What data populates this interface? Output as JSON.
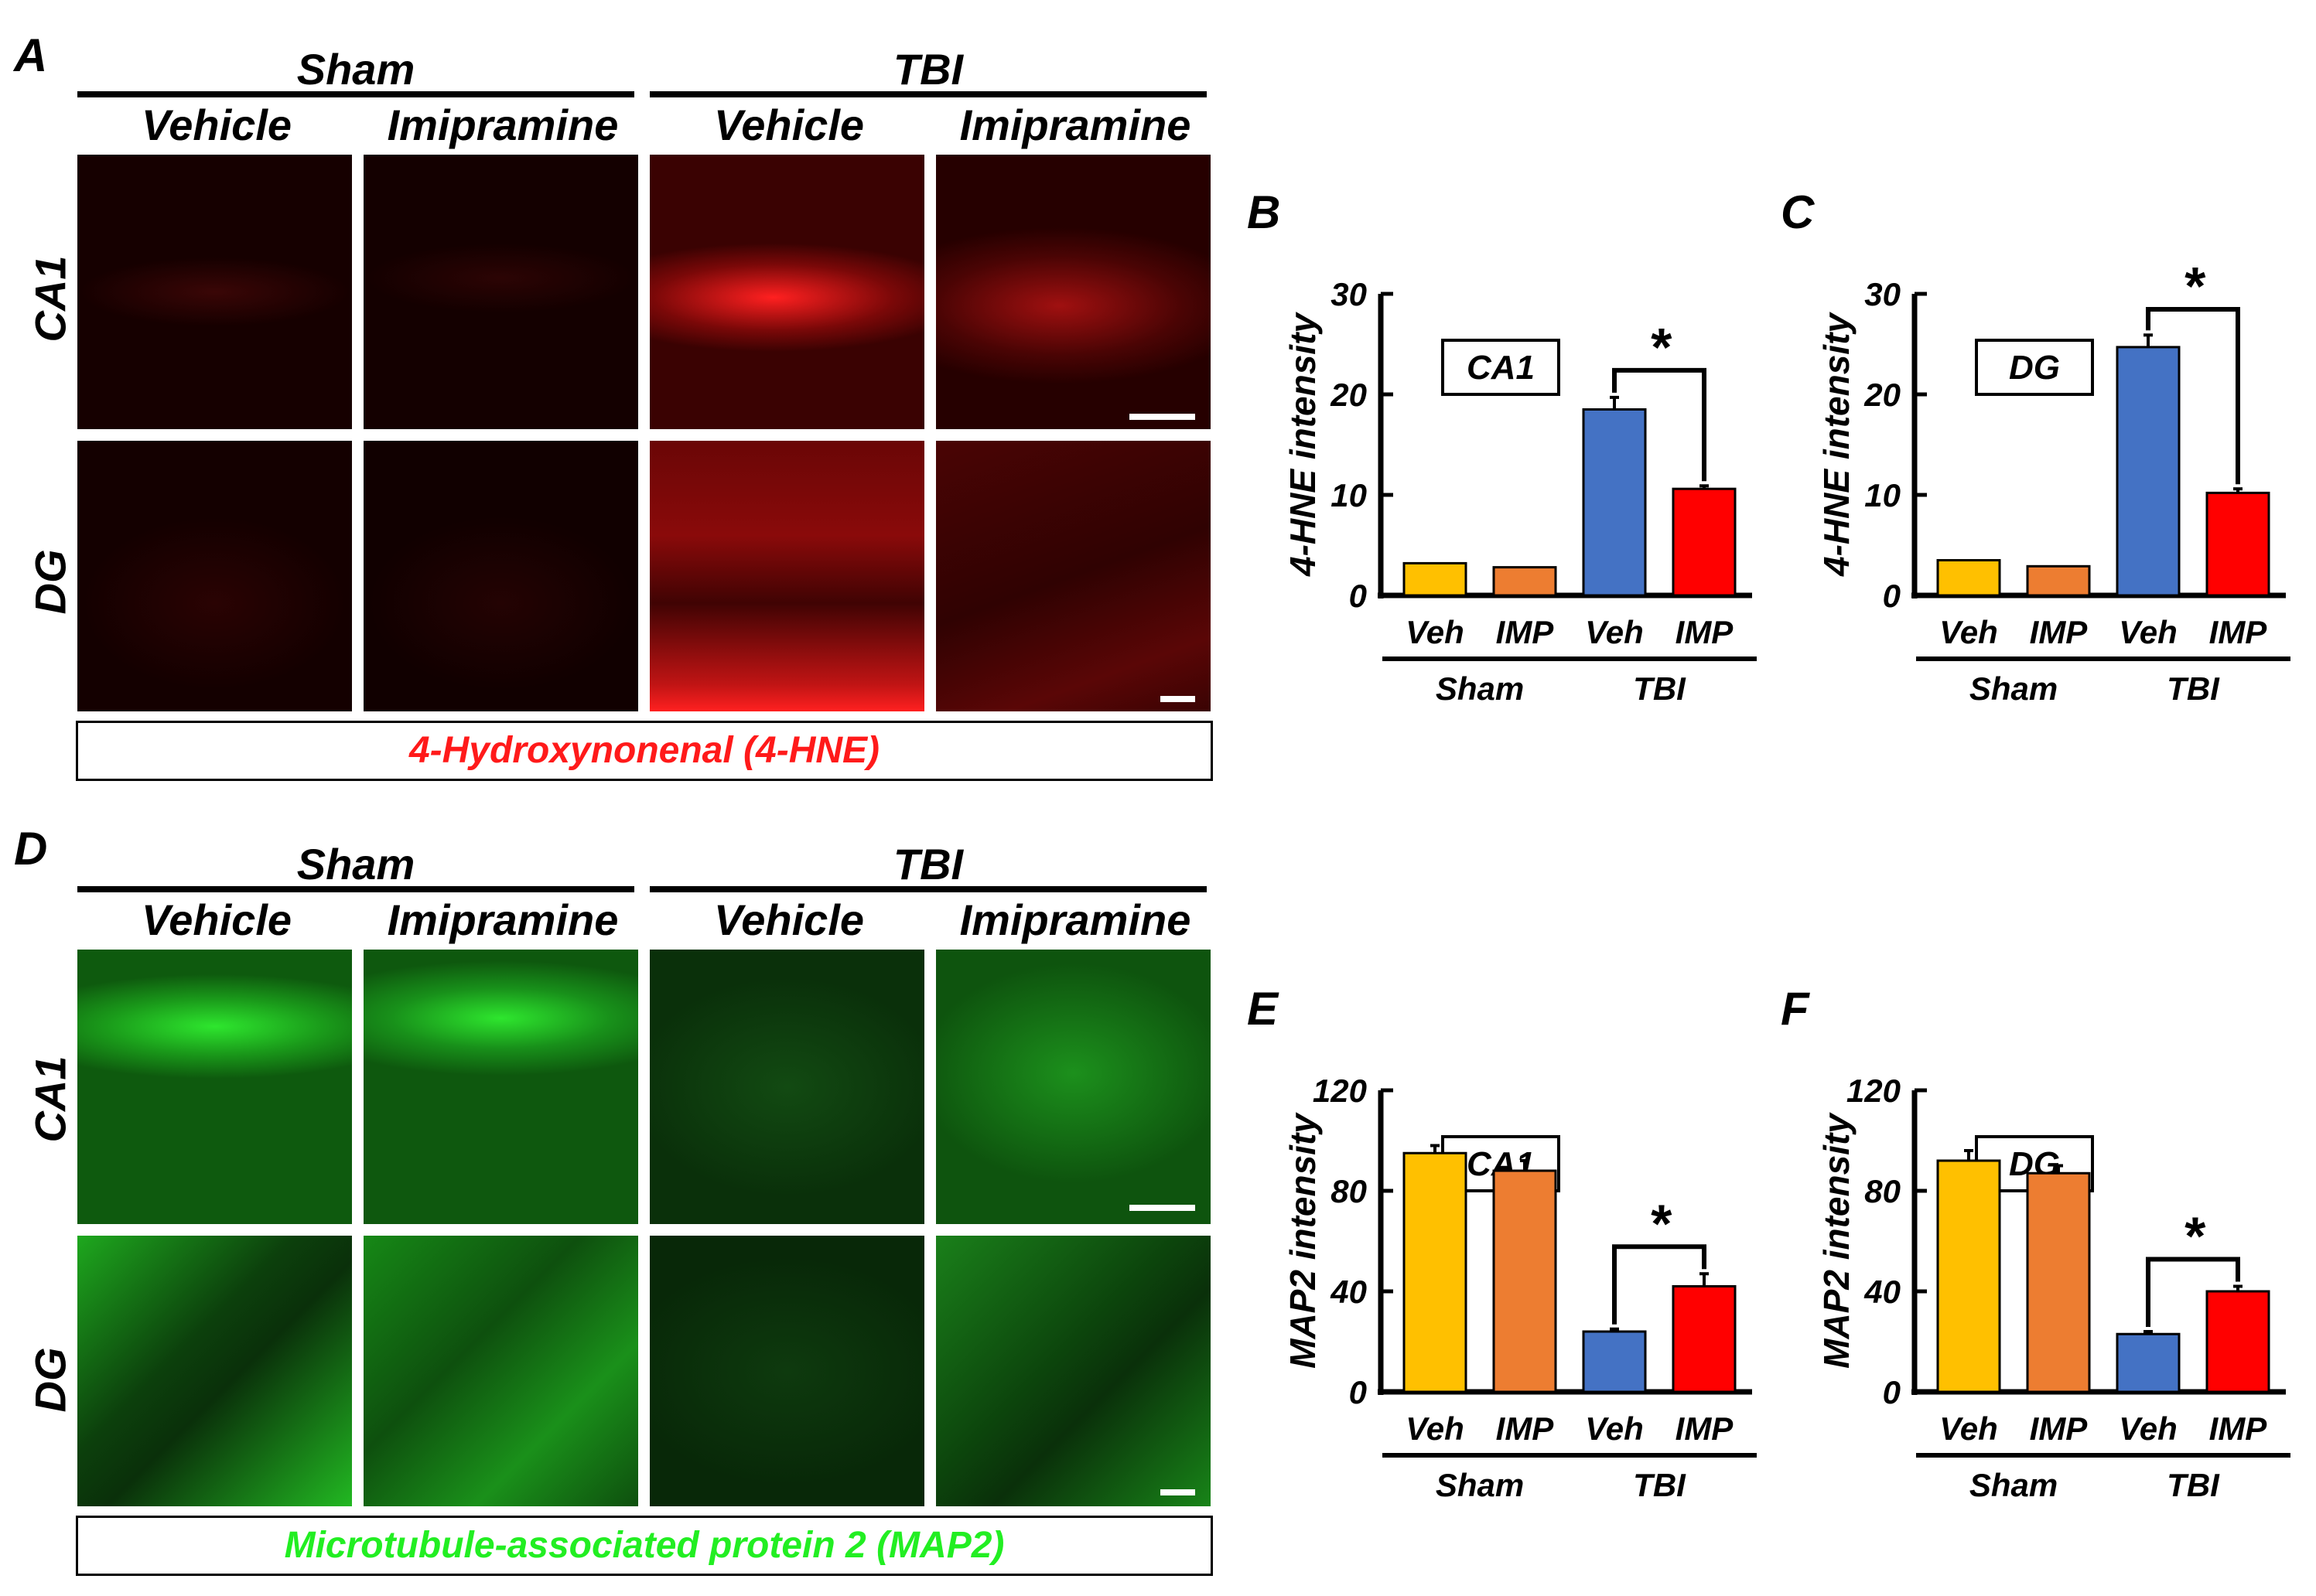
{
  "panel_letters": {
    "A": "A",
    "B": "B",
    "C": "C",
    "D": "D",
    "E": "E",
    "F": "F"
  },
  "micrographs": {
    "groups": [
      "Sham",
      "TBI"
    ],
    "treatments": [
      "Vehicle",
      "Imipramine",
      "Vehicle",
      "Imipramine"
    ],
    "rows": [
      "CA1",
      "DG"
    ],
    "hne_caption": "4-Hydroxynonenal (4-HNE)",
    "map2_caption": "Microtubule-associated protein 2 (MAP2)",
    "colors": {
      "hne": "#ff1a1a",
      "map2": "#22ee22"
    }
  },
  "chart_data": [
    {
      "panel": "B",
      "type": "bar",
      "ylabel": "4-HNE intensity",
      "region": "CA1",
      "categories": [
        "Veh",
        "IMP",
        "Veh",
        "IMP"
      ],
      "groups": [
        "Sham",
        "TBI"
      ],
      "values": [
        3.2,
        2.8,
        18.5,
        10.6
      ],
      "errors": [
        0,
        0,
        1.2,
        0.3
      ],
      "colors": [
        "#ffc000",
        "#ed7d31",
        "#4472c4",
        "#ff0000"
      ],
      "ylim": [
        0,
        30
      ],
      "yticks": [
        0,
        10,
        20,
        30
      ],
      "significance": "*"
    },
    {
      "panel": "C",
      "type": "bar",
      "ylabel": "4-HNE intensity",
      "region": "DG",
      "categories": [
        "Veh",
        "IMP",
        "Veh",
        "IMP"
      ],
      "groups": [
        "Sham",
        "TBI"
      ],
      "values": [
        3.5,
        2.9,
        24.7,
        10.2
      ],
      "errors": [
        0,
        0,
        1.2,
        0.4
      ],
      "colors": [
        "#ffc000",
        "#ed7d31",
        "#4472c4",
        "#ff0000"
      ],
      "ylim": [
        0,
        30
      ],
      "yticks": [
        0,
        10,
        20,
        30
      ],
      "significance": "*"
    },
    {
      "panel": "E",
      "type": "bar",
      "ylabel": "MAP2 intensity",
      "region": "CA1",
      "categories": [
        "Veh",
        "IMP",
        "Veh",
        "IMP"
      ],
      "groups": [
        "Sham",
        "TBI"
      ],
      "values": [
        95,
        88,
        24,
        42
      ],
      "errors": [
        3,
        4,
        1,
        5
      ],
      "colors": [
        "#ffc000",
        "#ed7d31",
        "#4472c4",
        "#ff0000"
      ],
      "ylim": [
        0,
        120
      ],
      "yticks": [
        0,
        40,
        80,
        120
      ],
      "significance": "*"
    },
    {
      "panel": "F",
      "type": "bar",
      "ylabel": "MAP2 intensity",
      "region": "DG",
      "categories": [
        "Veh",
        "IMP",
        "Veh",
        "IMP"
      ],
      "groups": [
        "Sham",
        "TBI"
      ],
      "values": [
        92,
        87,
        23,
        40
      ],
      "errors": [
        4,
        3,
        1,
        2
      ],
      "colors": [
        "#ffc000",
        "#ed7d31",
        "#4472c4",
        "#ff0000"
      ],
      "ylim": [
        0,
        120
      ],
      "yticks": [
        0,
        40,
        80,
        120
      ],
      "significance": "*"
    }
  ]
}
